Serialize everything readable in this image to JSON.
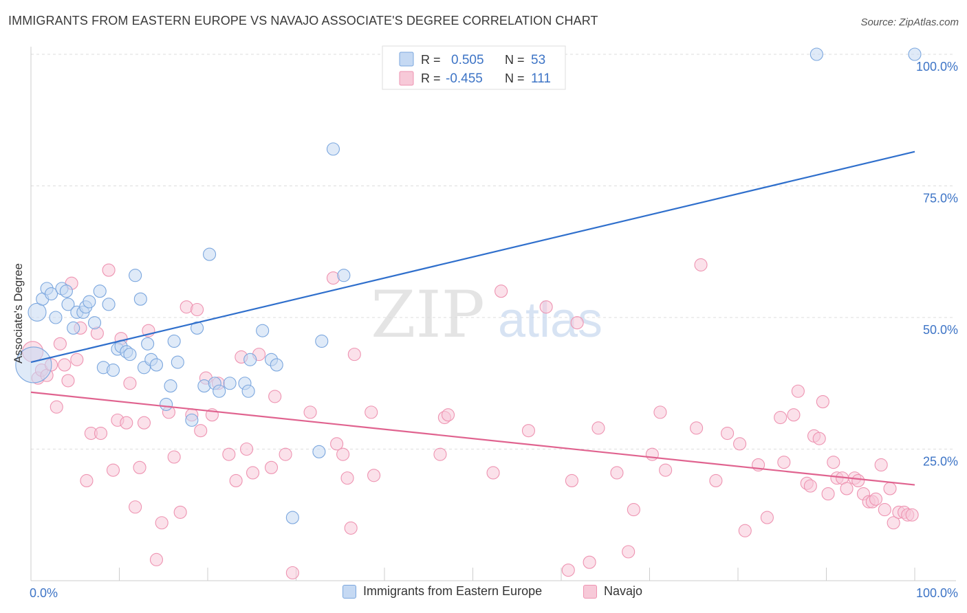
{
  "header": {
    "title": "IMMIGRANTS FROM EASTERN EUROPE VS NAVAJO ASSOCIATE'S DEGREE CORRELATION CHART",
    "source": "Source: ZipAtlas.com"
  },
  "watermark": {
    "zip": "ZIP",
    "atlas": "atlas"
  },
  "colors": {
    "blue_fill": "#c5d9f3",
    "blue_stroke": "#7aa6de",
    "blue_line": "#2f6fcc",
    "blue_text": "#3d74c6",
    "pink_fill": "#f7c9d8",
    "pink_stroke": "#ee93b1",
    "pink_line": "#e0638f",
    "grid": "#dddddd",
    "axis": "#cccccc"
  },
  "chart_data": {
    "type": "scatter",
    "ylabel": "Associate's Degree",
    "xlim": [
      0,
      100
    ],
    "ylim": [
      0,
      100
    ],
    "x_tick_labels": [
      "0.0%",
      "100.0%"
    ],
    "y_tick_labels": [
      "25.0%",
      "50.0%",
      "75.0%",
      "100.0%"
    ],
    "y_ticks": [
      25,
      50,
      75,
      100
    ],
    "grid": true,
    "legend_position": "top-center",
    "stats": [
      {
        "series": "blue",
        "r_label": "R =",
        "r_value": "0.505",
        "n_label": "N =",
        "n_value": "53"
      },
      {
        "series": "pink",
        "r_label": "R =",
        "r_value": "-0.455",
        "n_label": "N =",
        "n_value": "111"
      }
    ],
    "series": [
      {
        "name": "Immigrants from Eastern Europe",
        "color": "blue",
        "trend": {
          "x": [
            0,
            100
          ],
          "y": [
            41.5,
            81.5
          ]
        },
        "points": [
          [
            0.3,
            41,
            26
          ],
          [
            0.7,
            51,
            13
          ],
          [
            1.3,
            53.5,
            9
          ],
          [
            1.8,
            55.5,
            9
          ],
          [
            2.3,
            54.5,
            9
          ],
          [
            2.8,
            50,
            9
          ],
          [
            3.5,
            55.5,
            9
          ],
          [
            4.0,
            55,
            9
          ],
          [
            4.2,
            52.5,
            9
          ],
          [
            4.8,
            48,
            9
          ],
          [
            5.2,
            51,
            9
          ],
          [
            5.9,
            51,
            9
          ],
          [
            6.2,
            52,
            9
          ],
          [
            6.6,
            53,
            9
          ],
          [
            7.2,
            49,
            9
          ],
          [
            7.8,
            55,
            9
          ],
          [
            8.2,
            40.5,
            9
          ],
          [
            8.8,
            52.5,
            9
          ],
          [
            9.3,
            40,
            9
          ],
          [
            9.8,
            44,
            9
          ],
          [
            10.2,
            44.5,
            9
          ],
          [
            10.8,
            43.5,
            9
          ],
          [
            11.2,
            43,
            9
          ],
          [
            11.8,
            58,
            9
          ],
          [
            12.4,
            53.5,
            9
          ],
          [
            12.8,
            40.5,
            9
          ],
          [
            13.2,
            45,
            9
          ],
          [
            13.6,
            42,
            9
          ],
          [
            14.2,
            41,
            9
          ],
          [
            15.3,
            33.5,
            9
          ],
          [
            15.8,
            37,
            9
          ],
          [
            16.2,
            45.5,
            9
          ],
          [
            16.6,
            41.5,
            9
          ],
          [
            18.2,
            30.5,
            9
          ],
          [
            18.8,
            48,
            9
          ],
          [
            19.6,
            37,
            9
          ],
          [
            20.2,
            62,
            9
          ],
          [
            20.8,
            37.5,
            9
          ],
          [
            21.3,
            36,
            9
          ],
          [
            22.5,
            37.5,
            9
          ],
          [
            24.2,
            37.5,
            9
          ],
          [
            24.6,
            36,
            9
          ],
          [
            24.8,
            42,
            9
          ],
          [
            26.2,
            47.5,
            9
          ],
          [
            27.2,
            42,
            9
          ],
          [
            27.8,
            41,
            9
          ],
          [
            29.6,
            12,
            9
          ],
          [
            32.6,
            24.5,
            9
          ],
          [
            32.9,
            45.5,
            9
          ],
          [
            34.2,
            82,
            9
          ],
          [
            35.4,
            58,
            9
          ],
          [
            88.9,
            100,
            9
          ],
          [
            100,
            100,
            9
          ]
        ]
      },
      {
        "name": "Navajo",
        "color": "pink",
        "trend": {
          "x": [
            0,
            100
          ],
          "y": [
            35.8,
            18.2
          ]
        },
        "points": [
          [
            0.2,
            43.5,
            15
          ],
          [
            0.8,
            38.5,
            9
          ],
          [
            1.2,
            40,
            9
          ],
          [
            1.8,
            39,
            9
          ],
          [
            2.3,
            41,
            9
          ],
          [
            2.9,
            33,
            9
          ],
          [
            3.3,
            45,
            9
          ],
          [
            3.8,
            41,
            9
          ],
          [
            4.2,
            38,
            9
          ],
          [
            4.6,
            56.5,
            9
          ],
          [
            5.2,
            42,
            9
          ],
          [
            5.6,
            48,
            9
          ],
          [
            6.3,
            19,
            9
          ],
          [
            6.8,
            28,
            9
          ],
          [
            7.5,
            47,
            9
          ],
          [
            7.9,
            28,
            9
          ],
          [
            8.8,
            59,
            9
          ],
          [
            9.3,
            21,
            9
          ],
          [
            9.8,
            30.5,
            9
          ],
          [
            10.2,
            46,
            9
          ],
          [
            10.8,
            30,
            9
          ],
          [
            11.2,
            37.5,
            9
          ],
          [
            11.8,
            14,
            9
          ],
          [
            12.3,
            21.5,
            9
          ],
          [
            12.8,
            30,
            9
          ],
          [
            13.3,
            47.5,
            9
          ],
          [
            14.2,
            4,
            9
          ],
          [
            14.8,
            11,
            9
          ],
          [
            15.6,
            32,
            9
          ],
          [
            16.2,
            23.5,
            9
          ],
          [
            16.9,
            13,
            9
          ],
          [
            17.6,
            52,
            9
          ],
          [
            18.2,
            31.5,
            9
          ],
          [
            18.8,
            51.5,
            9
          ],
          [
            19.2,
            28.5,
            9
          ],
          [
            19.8,
            38.5,
            9
          ],
          [
            20.5,
            31.5,
            9
          ],
          [
            21.2,
            37.5,
            9
          ],
          [
            22.4,
            24,
            9
          ],
          [
            23.2,
            19,
            9
          ],
          [
            23.8,
            42.5,
            9
          ],
          [
            24.4,
            25,
            9
          ],
          [
            25.1,
            20.5,
            9
          ],
          [
            25.8,
            43,
            9
          ],
          [
            27.2,
            21.5,
            9
          ],
          [
            27.6,
            35,
            9
          ],
          [
            28.8,
            24,
            9
          ],
          [
            29.6,
            1.5,
            9
          ],
          [
            31.6,
            32,
            9
          ],
          [
            34.2,
            57.5,
            9
          ],
          [
            34.6,
            26,
            9
          ],
          [
            35.3,
            24,
            9
          ],
          [
            35.8,
            19.5,
            9
          ],
          [
            36.2,
            10,
            9
          ],
          [
            36.6,
            43,
            9
          ],
          [
            38.5,
            32,
            9
          ],
          [
            38.8,
            20,
            9
          ],
          [
            46.3,
            24,
            9
          ],
          [
            46.8,
            31,
            9
          ],
          [
            47.2,
            31.5,
            9
          ],
          [
            52.3,
            20.5,
            9
          ],
          [
            53.2,
            55,
            9
          ],
          [
            56.3,
            28.5,
            9
          ],
          [
            58.3,
            52,
            9
          ],
          [
            60.8,
            2,
            9
          ],
          [
            61.2,
            19,
            9
          ],
          [
            61.8,
            49,
            9
          ],
          [
            63.2,
            3.5,
            9
          ],
          [
            64.2,
            29,
            9
          ],
          [
            66.3,
            20.5,
            9
          ],
          [
            67.6,
            5.5,
            9
          ],
          [
            68.2,
            13.5,
            9
          ],
          [
            70.3,
            24,
            9
          ],
          [
            71.2,
            32,
            9
          ],
          [
            71.8,
            21,
            9
          ],
          [
            75.3,
            29,
            9
          ],
          [
            75.8,
            60,
            9
          ],
          [
            77.5,
            19,
            9
          ],
          [
            78.8,
            28,
            9
          ],
          [
            80.2,
            26,
            9
          ],
          [
            80.8,
            9.5,
            9
          ],
          [
            82.3,
            22,
            9
          ],
          [
            83.3,
            12,
            9
          ],
          [
            84.8,
            31,
            9
          ],
          [
            85.2,
            22.5,
            9
          ],
          [
            86.3,
            31.5,
            9
          ],
          [
            86.8,
            36,
            9
          ],
          [
            87.8,
            18.5,
            9
          ],
          [
            88.2,
            18,
            9
          ],
          [
            88.6,
            27.5,
            9
          ],
          [
            89.2,
            27,
            9
          ],
          [
            89.6,
            34,
            9
          ],
          [
            90.2,
            16.5,
            9
          ],
          [
            90.8,
            22.5,
            9
          ],
          [
            91.2,
            19.5,
            9
          ],
          [
            91.8,
            19.5,
            9
          ],
          [
            92.3,
            17.5,
            9
          ],
          [
            93.2,
            19.5,
            9
          ],
          [
            93.6,
            19,
            9
          ],
          [
            94.2,
            16.5,
            9
          ],
          [
            94.8,
            15,
            9
          ],
          [
            95.2,
            15,
            9
          ],
          [
            95.6,
            15.5,
            9
          ],
          [
            96.2,
            22,
            9
          ],
          [
            96.6,
            13.5,
            9
          ],
          [
            97.2,
            17.5,
            9
          ],
          [
            97.6,
            11,
            9
          ],
          [
            98.2,
            13,
            9
          ],
          [
            98.8,
            13,
            9
          ],
          [
            99.2,
            12.5,
            9
          ],
          [
            99.7,
            12.5,
            9
          ]
        ]
      }
    ]
  }
}
